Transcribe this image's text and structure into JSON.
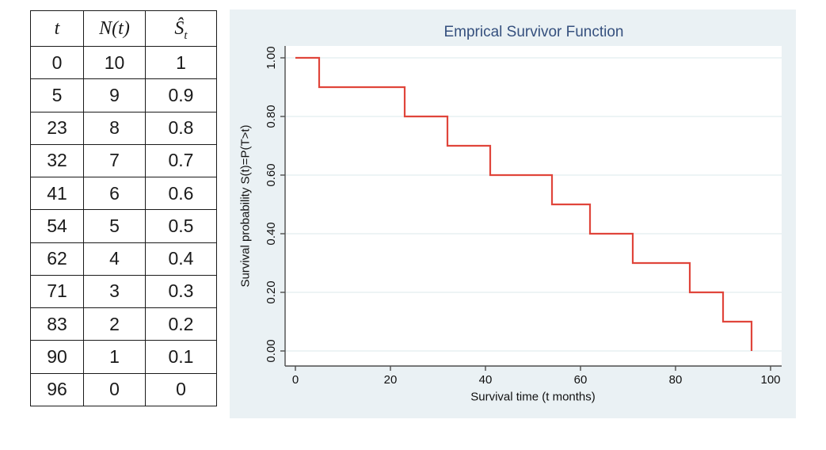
{
  "table": {
    "headers": {
      "col1": "t",
      "col2": "N(t)",
      "col3_base": "Ŝ",
      "col3_sub": "t"
    },
    "rows": [
      [
        "0",
        "10",
        "1"
      ],
      [
        "5",
        "9",
        "0.9"
      ],
      [
        "23",
        "8",
        "0.8"
      ],
      [
        "32",
        "7",
        "0.7"
      ],
      [
        "41",
        "6",
        "0.6"
      ],
      [
        "54",
        "5",
        "0.5"
      ],
      [
        "62",
        "4",
        "0.4"
      ],
      [
        "71",
        "3",
        "0.3"
      ],
      [
        "83",
        "2",
        "0.2"
      ],
      [
        "90",
        "1",
        "0.1"
      ],
      [
        "96",
        "0",
        "0"
      ]
    ]
  },
  "chart_data": {
    "type": "line",
    "subtype": "step-post",
    "title": "Emprical Survivor Function",
    "xlabel": "Survival time (t months)",
    "ylabel": "Survival probability S(t)=P(T>t)",
    "x": [
      0,
      5,
      23,
      32,
      41,
      54,
      62,
      71,
      83,
      90,
      96
    ],
    "y": [
      1,
      0.9,
      0.8,
      0.7,
      0.6,
      0.5,
      0.4,
      0.3,
      0.2,
      0.1,
      0
    ],
    "xlim": [
      0,
      100
    ],
    "ylim": [
      0,
      1
    ],
    "xticks": [
      0,
      20,
      40,
      60,
      80,
      100
    ],
    "xtick_labels": [
      "0",
      "20",
      "40",
      "60",
      "80",
      "100"
    ],
    "yticks": [
      0,
      0.2,
      0.4,
      0.6,
      0.8,
      1
    ],
    "ytick_labels": [
      "0.00",
      "0.20",
      "0.40",
      "0.60",
      "0.80",
      "1.00"
    ],
    "grid": "horizontal",
    "legend_position": "none",
    "colors": {
      "line": "#e0453b",
      "panel_bg": "#eaf1f4",
      "plot_bg": "#ffffff",
      "grid": "#e2edef",
      "axis": "#4d4d4d",
      "title": "#35507e",
      "tick_text": "#111111"
    }
  }
}
